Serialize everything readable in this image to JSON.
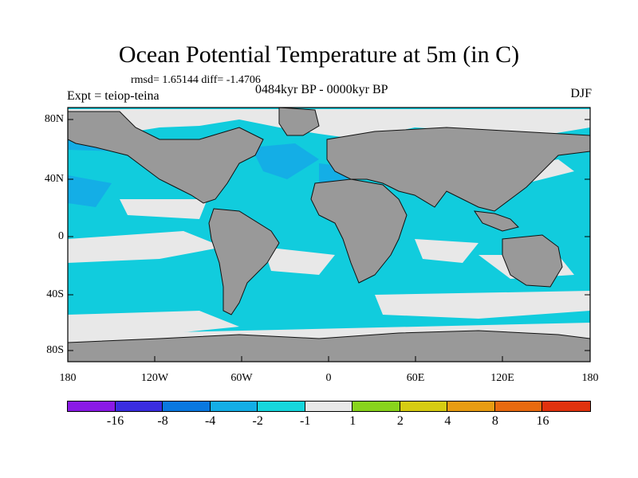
{
  "title": "Ocean Potential Temperature at 5m (in C)",
  "stats": "rmsd= 1.65144 diff= -1.4706",
  "experiment": "Expt = teiop-teina",
  "period": "0484kyr BP - 0000kyr BP",
  "season": "DJF",
  "map": {
    "lat_ticks": [
      "80N",
      "40N",
      "0",
      "40S",
      "80S"
    ],
    "lon_ticks": [
      "180",
      "120W",
      "60W",
      "0",
      "60E",
      "120E",
      "180"
    ],
    "land_color": "#999999",
    "ocean_color": "#11ccdd"
  },
  "colorbar": {
    "colors": [
      "#8a1ae6",
      "#3a2de0",
      "#0a78e0",
      "#14aee6",
      "#16d6dc",
      "#e8e8e8",
      "#88d41c",
      "#d6cc12",
      "#e89c12",
      "#e86a10",
      "#e0320e"
    ],
    "labels": [
      "-16",
      "-8",
      "-4",
      "-2",
      "-1",
      "1",
      "2",
      "4",
      "8",
      "16"
    ]
  }
}
